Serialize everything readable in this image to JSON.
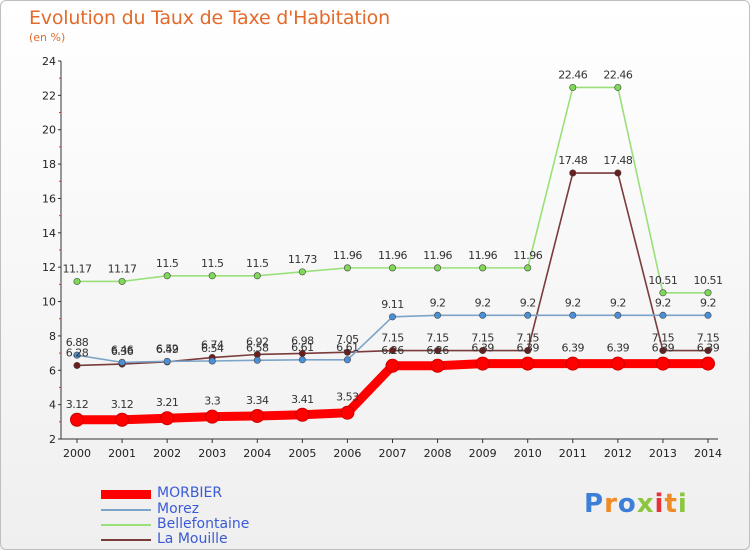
{
  "title": "Evolution du Taux de Taxe d'Habitation",
  "subtitle": "(en %)",
  "logo": {
    "text": "Proxiti",
    "letters": [
      "P",
      "r",
      "o",
      "x",
      "i",
      "t",
      "i"
    ]
  },
  "chart_data": {
    "type": "line",
    "categories": [
      "2000",
      "2001",
      "2002",
      "2003",
      "2004",
      "2005",
      "2006",
      "2007",
      "2008",
      "2009",
      "2010",
      "2011",
      "2012",
      "2013",
      "2014"
    ],
    "ylim": [
      2,
      24
    ],
    "yticks": [
      2,
      4,
      6,
      8,
      10,
      12,
      14,
      16,
      18,
      20,
      22,
      24
    ],
    "grid": false,
    "legend_position": "bottom-left",
    "series": [
      {
        "name": "MORBIER",
        "color": "#ff0000",
        "marker_color": "#ff0000",
        "values": [
          3.12,
          3.12,
          3.21,
          3.3,
          3.34,
          3.41,
          3.53,
          6.26,
          6.26,
          6.39,
          6.39,
          6.39,
          6.39,
          6.39,
          6.39
        ],
        "labels": [
          "3.12",
          "3.12",
          "3.21",
          "3.3",
          "3.34",
          "3.41",
          "3.53",
          "6.26",
          "6.26",
          "6.39",
          "6.39",
          "6.39",
          "6.39",
          "6.39",
          "6.39"
        ]
      },
      {
        "name": "Morez",
        "color": "#7ca3c8",
        "marker_color": "#4a90d9",
        "values": [
          6.88,
          6.46,
          6.52,
          6.54,
          6.58,
          6.61,
          6.61,
          9.11,
          9.2,
          9.2,
          9.2,
          9.2,
          9.2,
          9.2,
          9.2
        ],
        "labels": [
          "6.88",
          "6.46",
          "6.52",
          "6.54",
          "6.58",
          "6.61",
          "6.61",
          "9.11",
          "9.2",
          "9.2",
          "9.2",
          "9.2",
          "9.2",
          "9.2",
          "9.2"
        ]
      },
      {
        "name": "Bellefontaine",
        "color": "#99e07a",
        "marker_color": "#7ed957",
        "values": [
          11.17,
          11.17,
          11.5,
          11.5,
          11.5,
          11.73,
          11.96,
          11.96,
          11.96,
          11.96,
          11.96,
          22.46,
          22.46,
          10.51,
          10.51
        ],
        "labels": [
          "11.17",
          "11.17",
          "11.5",
          "11.5",
          "11.5",
          "11.73",
          "11.96",
          "11.96",
          "11.96",
          "11.96",
          "11.96",
          "22.46",
          "22.46",
          "10.51",
          "10.51"
        ]
      },
      {
        "name": "La Mouille",
        "color": "#7a3b3b",
        "marker_color": "#6b1e1e",
        "values": [
          6.28,
          6.36,
          6.49,
          6.74,
          6.92,
          6.98,
          7.05,
          7.15,
          7.15,
          7.15,
          7.15,
          17.48,
          17.48,
          7.15,
          7.15
        ],
        "labels": [
          "6.28",
          "6.36",
          "6.49",
          "6.74",
          "6.92",
          "6.98",
          "7.05",
          "7.15",
          "7.15",
          "7.15",
          "7.15",
          "17.48",
          "17.48",
          "7.15",
          "7.15"
        ]
      }
    ]
  }
}
